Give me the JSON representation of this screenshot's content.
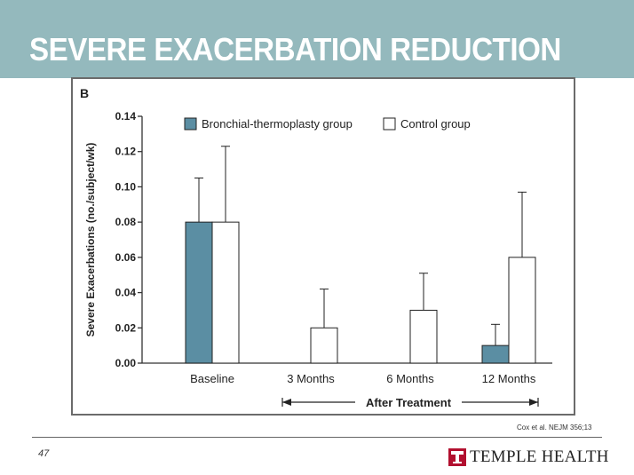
{
  "slide": {
    "title": "SEVERE EXACERBATION REDUCTION",
    "citation": "Cox et al. NEJM 356;13",
    "page_number": "47",
    "logo_text": "TEMPLE HEALTH"
  },
  "colors": {
    "header_band": "#94b9bd",
    "bt_bar": "#5b8ea3",
    "control_bar": "#ffffff"
  },
  "chart_data": {
    "type": "bar",
    "panel_label": "B",
    "categories": [
      "Baseline",
      "3 Months",
      "6 Months",
      "12 Months"
    ],
    "series": [
      {
        "name": "Bronchial-thermoplasty group",
        "values": [
          0.08,
          0.0,
          0.0,
          0.01
        ],
        "error_upper": [
          0.105,
          null,
          null,
          0.022
        ]
      },
      {
        "name": "Control group",
        "values": [
          0.08,
          0.02,
          0.03,
          0.06
        ],
        "error_upper": [
          0.123,
          0.042,
          0.051,
          0.097
        ]
      }
    ],
    "ylabel": "Severe Exacerbations (no./subject/wk)",
    "ylim": [
      0,
      0.14
    ],
    "yticks": [
      "0.00",
      "0.02",
      "0.04",
      "0.06",
      "0.08",
      "0.10",
      "0.12",
      "0.14"
    ],
    "bracket_label": "After Treatment",
    "legend_position": "top"
  }
}
